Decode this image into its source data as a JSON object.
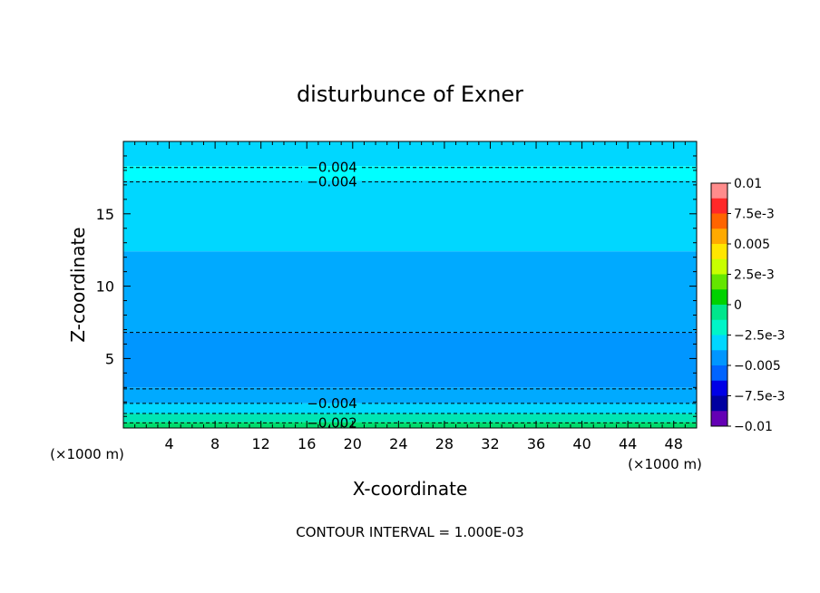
{
  "chart_data": {
    "type": "heatmap",
    "title": "disturbunce of Exner",
    "xlabel": "X-coordinate",
    "ylabel": "Z-coordinate",
    "x_unit_left": "(×1000 m)",
    "x_unit_right": "(×1000 m)",
    "xlim": [
      0,
      50
    ],
    "ylim": [
      0.2,
      20
    ],
    "x_ticks": [
      4,
      8,
      12,
      16,
      20,
      24,
      28,
      32,
      36,
      40,
      44,
      48
    ],
    "y_ticks": [
      5,
      10,
      15
    ],
    "footer": "CONTOUR INTERVAL = 1.000E-03",
    "contour_interval": 0.001,
    "colorbar": {
      "vmin": -0.01,
      "vmax": 0.01,
      "tick_values": [
        0.01,
        0.0075,
        0.005,
        0.0025,
        0,
        -0.0025,
        -0.005,
        -0.0075,
        -0.01
      ],
      "tick_labels": [
        "0.01",
        "7.5e-3",
        "0.005",
        "2.5e-3",
        "0",
        "−2.5e-3",
        "−0.005",
        "−7.5e-3",
        "−0.01"
      ],
      "colors": [
        "#ff8c8c",
        "#ff2828",
        "#ff6400",
        "#ffaa00",
        "#ffe600",
        "#c8ff00",
        "#64e600",
        "#00d200",
        "#00e68c",
        "#00f5c8",
        "#00d7ff",
        "#0096ff",
        "#0064ff",
        "#0000e6",
        "#0000a0",
        "#6400b4"
      ]
    },
    "bands": [
      {
        "level_range": [
          -0.004,
          -0.003
        ],
        "color": "#00d7ff",
        "z_range": [
          18.3,
          20
        ]
      },
      {
        "level_range": [
          -0.005,
          -0.004
        ],
        "color": "#00ffff",
        "z_range": [
          17.3,
          18.3
        ]
      },
      {
        "level_range": [
          -0.004,
          -0.003
        ],
        "color": "#00d7ff",
        "z_range": [
          12.4,
          17.3
        ]
      },
      {
        "level_range": [
          -0.005,
          -0.004
        ],
        "color": "#00aaff",
        "z_range": [
          6.8,
          12.4
        ]
      },
      {
        "level_range": [
          -0.006,
          -0.005
        ],
        "color": "#0096ff",
        "z_range": [
          3.0,
          6.8
        ]
      },
      {
        "level_range": [
          -0.005,
          -0.004
        ],
        "color": "#00aaff",
        "z_range": [
          1.9,
          3.0
        ]
      },
      {
        "level_range": [
          -0.004,
          -0.003
        ],
        "color": "#00d7ff",
        "z_range": [
          1.2,
          1.9
        ]
      },
      {
        "level_range": [
          -0.003,
          -0.002
        ],
        "color": "#00e6b4",
        "z_range": [
          0.6,
          1.2
        ]
      },
      {
        "level_range": [
          -0.002,
          -0.001
        ],
        "color": "#00dc6e",
        "z_range": [
          0.2,
          0.6
        ]
      }
    ],
    "contours": [
      {
        "level": -0.004,
        "label": "−0.004",
        "z": 18.2,
        "label_x": 18.2
      },
      {
        "level": -0.004,
        "label": "−0.004",
        "z": 17.2,
        "label_x": 18.2
      },
      {
        "level": -0.005,
        "label": "",
        "z": 6.8,
        "label_x": null
      },
      {
        "level": -0.005,
        "label": "",
        "z": 2.9,
        "label_x": null
      },
      {
        "level": -0.004,
        "label": "−0.004",
        "z": 1.9,
        "label_x": 18.2
      },
      {
        "level": -0.003,
        "label": "",
        "z": 1.2,
        "label_x": null
      },
      {
        "level": -0.002,
        "label": "−0.002",
        "z": 0.55,
        "label_x": 18.2
      }
    ]
  }
}
